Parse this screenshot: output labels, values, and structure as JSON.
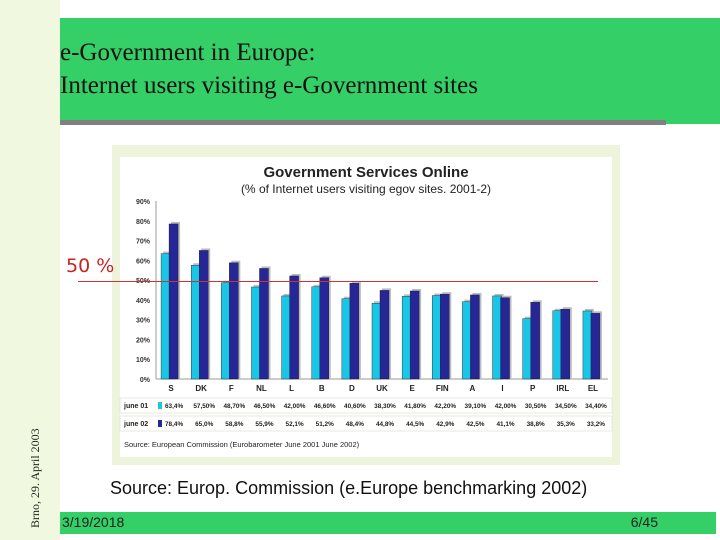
{
  "slide": {
    "title_line1": "e-Government in Europe:",
    "title_line2": "Internet users visiting e-Government sites",
    "vertical_text": "Brno, 29. April 2003",
    "source_text": "Source: Europ. Commission (e.Europe benchmarking 2002)",
    "date": "3/19/2018",
    "page_number": "6/45",
    "marker_label": "50 %"
  },
  "colors": {
    "green_band": "#35cf67",
    "light_green": "#f1f8e0",
    "series_june01": "#1ac6e6",
    "series_june02": "#262696",
    "marker_line": "#cc3333"
  },
  "chart_data": {
    "type": "bar",
    "title": "Government Services Online",
    "subtitle": "(% of Internet users visiting egov sites. 2001-2)",
    "categories": [
      "S",
      "DK",
      "F",
      "NL",
      "L",
      "B",
      "D",
      "UK",
      "E",
      "FIN",
      "A",
      "I",
      "P",
      "IRL",
      "EL"
    ],
    "series": [
      {
        "name": "june 01",
        "values": [
          63.4,
          57.5,
          48.7,
          46.5,
          42.0,
          46.6,
          40.6,
          38.3,
          41.8,
          42.2,
          39.1,
          42.0,
          30.5,
          34.5,
          34.4
        ],
        "labels": [
          "63,4%",
          "57,50%",
          "48,70%",
          "46,50%",
          "42,00%",
          "46,60%",
          "40,60%",
          "38,30%",
          "41,80%",
          "42,20%",
          "39,10%",
          "42,00%",
          "30,50%",
          "34,50%",
          "34,40%"
        ]
      },
      {
        "name": "june 02",
        "values": [
          78.4,
          65.0,
          58.8,
          55.9,
          52.1,
          51.2,
          48.4,
          44.8,
          44.5,
          42.9,
          42.5,
          41.1,
          38.8,
          35.3,
          33.2
        ],
        "labels": [
          "78,4%",
          "65,0%",
          "58,8%",
          "55,9%",
          "52,1%",
          "51,2%",
          "48,4%",
          "44,8%",
          "44,5%",
          "42,9%",
          "42,5%",
          "41,1%",
          "38,8%",
          "35,3%",
          "33,2%"
        ]
      }
    ],
    "ylim": [
      0,
      90
    ],
    "yticks": [
      "0%",
      "10%",
      "20%",
      "30%",
      "40%",
      "50%",
      "60%",
      "70%",
      "80%",
      "90%"
    ],
    "grid": false,
    "legend": "table-below",
    "source_note": "Source: European Commission (Eurobarometer June 2001 June 2002)"
  }
}
